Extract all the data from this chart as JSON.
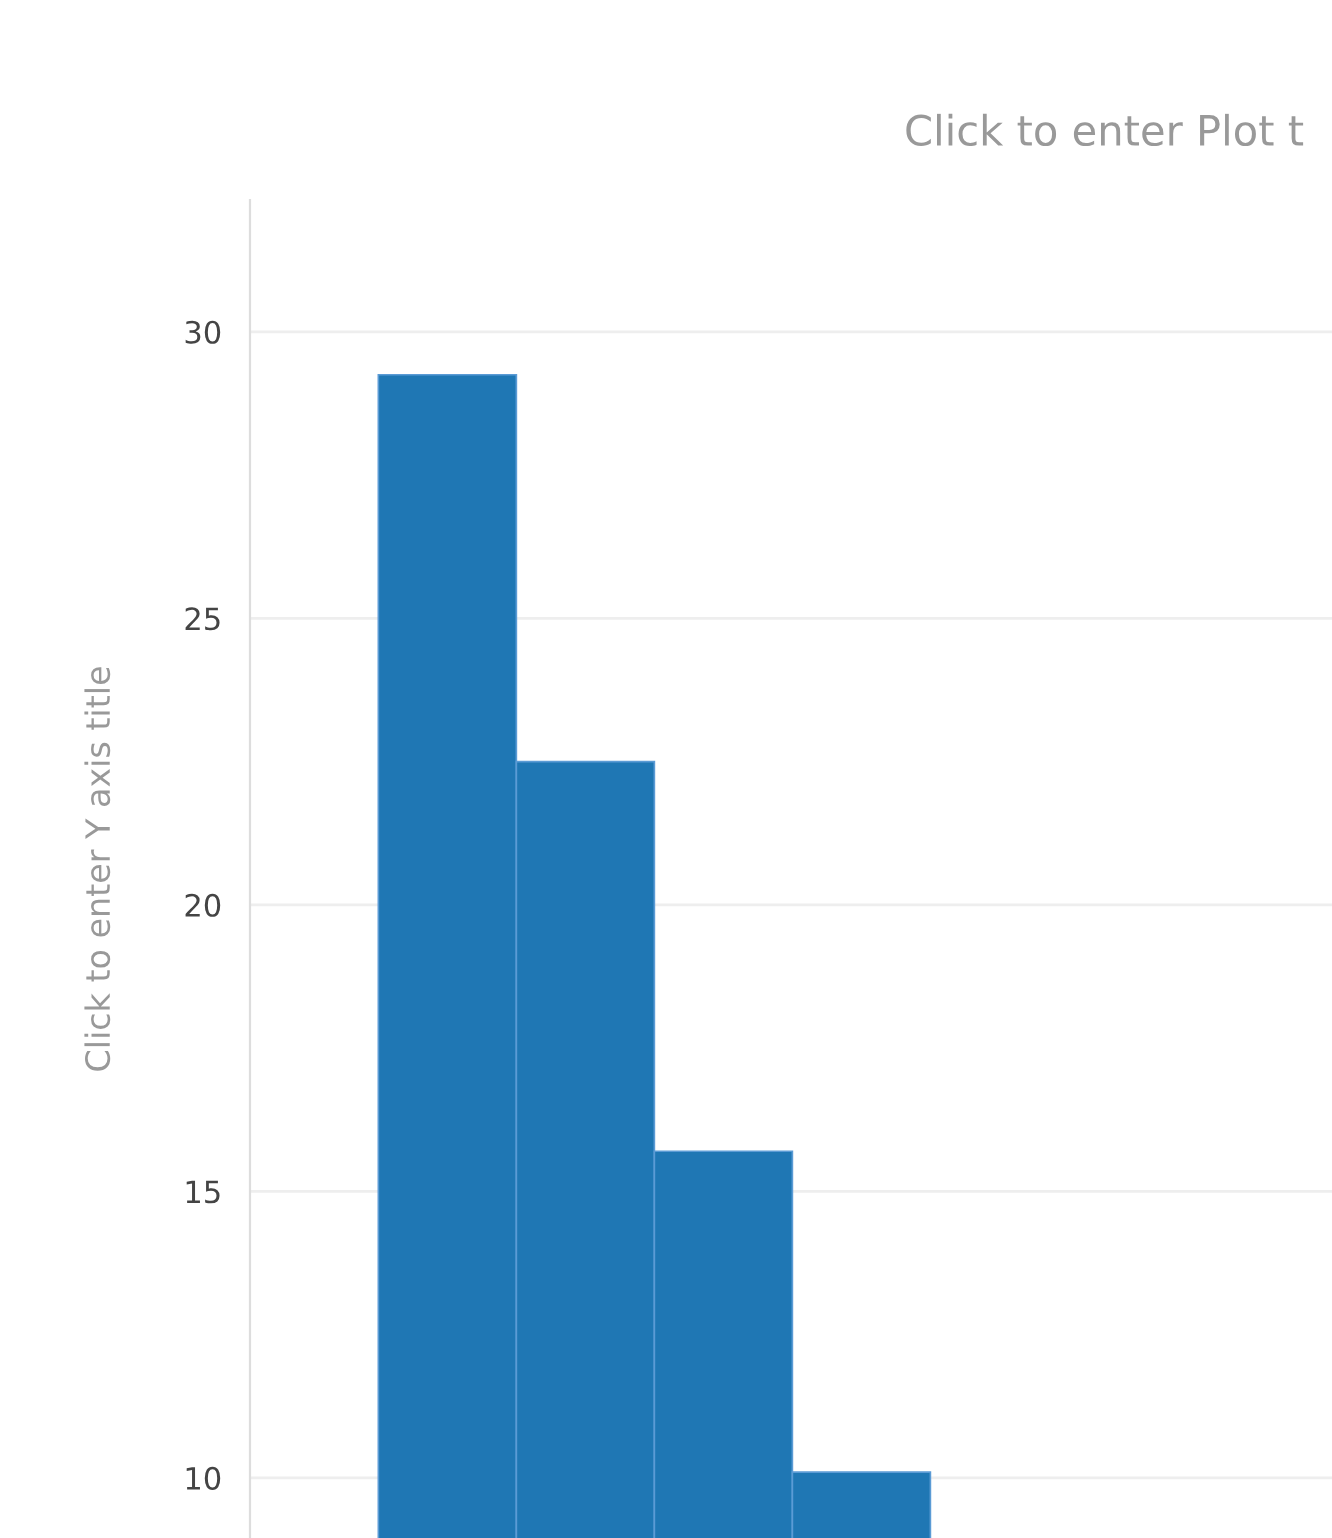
{
  "chart_data": {
    "type": "bar",
    "title": "Click to enter Plot t",
    "ylabel": "Click to enter Y axis title",
    "categories": [
      null,
      null,
      null,
      null
    ],
    "series": [
      {
        "color": "#1f77b4",
        "values": [
          29.25,
          22.5,
          15.7,
          10.1
        ]
      }
    ],
    "ylim": [
      8.95,
      32.3
    ],
    "yticks": [
      10,
      15,
      20,
      25,
      30
    ],
    "grid": "y",
    "tick_labels": "y"
  }
}
